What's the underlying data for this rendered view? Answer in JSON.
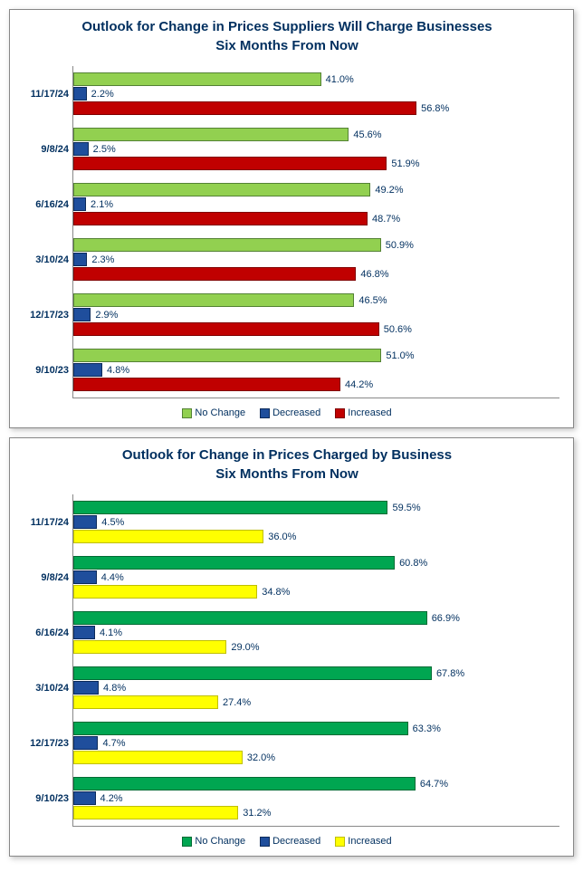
{
  "charts": [
    {
      "title": "Outlook for Change in Prices Suppliers Will Charge Businesses",
      "subtitle": "Six Months From Now",
      "title_color": "#002f5f",
      "label_color": "#002f5f",
      "value_label_color": "#002f5f",
      "xmax": 70,
      "series": [
        {
          "name": "No Change",
          "fill": "#92d050",
          "border": "#548235"
        },
        {
          "name": "Decreased",
          "fill": "#1f4e9c",
          "border": "#0b2a5a"
        },
        {
          "name": "Increased",
          "fill": "#c00000",
          "border": "#800000"
        }
      ],
      "categories": [
        "11/17/24",
        "9/8/24",
        "6/16/24",
        "3/10/24",
        "12/17/23",
        "9/10/23"
      ],
      "data": [
        [
          41.0,
          2.2,
          56.8
        ],
        [
          45.6,
          2.5,
          51.9
        ],
        [
          49.2,
          2.1,
          48.7
        ],
        [
          50.9,
          2.3,
          46.8
        ],
        [
          46.5,
          2.9,
          50.6
        ],
        [
          51.0,
          4.8,
          44.2
        ]
      ]
    },
    {
      "title": "Outlook for Change in Prices Charged by Business",
      "subtitle": "Six Months From Now",
      "title_color": "#002f5f",
      "label_color": "#002f5f",
      "value_label_color": "#002f5f",
      "xmax": 80,
      "series": [
        {
          "name": "No Change",
          "fill": "#00a651",
          "border": "#006b34"
        },
        {
          "name": "Decreased",
          "fill": "#1f4e9c",
          "border": "#0b2a5a"
        },
        {
          "name": "Increased",
          "fill": "#ffff00",
          "border": "#bfbf00"
        }
      ],
      "categories": [
        "11/17/24",
        "9/8/24",
        "6/16/24",
        "3/10/24",
        "12/17/23",
        "9/10/23"
      ],
      "data": [
        [
          59.5,
          4.5,
          36.0
        ],
        [
          60.8,
          4.4,
          34.8
        ],
        [
          66.9,
          4.1,
          29.0
        ],
        [
          67.8,
          4.8,
          27.4
        ],
        [
          63.3,
          4.7,
          32.0
        ],
        [
          64.7,
          4.2,
          31.2
        ]
      ]
    }
  ]
}
